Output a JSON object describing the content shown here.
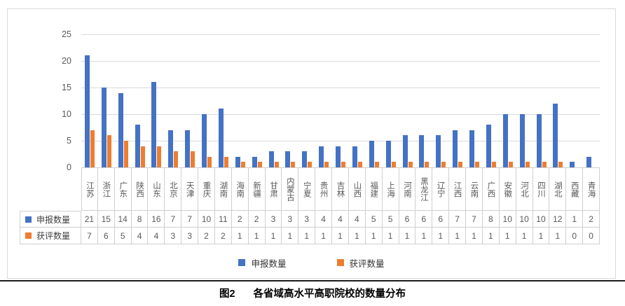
{
  "colors": {
    "applied_blue": "#4472C4",
    "awarded_orange": "#ED7D31",
    "gridline": "#DADADA",
    "table_border": "#CFCFCF",
    "axis_text": "#595959"
  },
  "chart_data": {
    "type": "bar",
    "title": "",
    "categories": [
      "江苏",
      "浙江",
      "广东",
      "陕西",
      "山东",
      "北京",
      "天津",
      "重庆",
      "湖南",
      "海南",
      "新疆",
      "甘肃",
      "内蒙古",
      "宁夏",
      "贵州",
      "吉林",
      "山西",
      "福建",
      "上海",
      "河南",
      "黑龙江",
      "辽宁",
      "江西",
      "云南",
      "广西",
      "安徽",
      "河北",
      "四川",
      "湖北",
      "西藏",
      "青海"
    ],
    "series": [
      {
        "name": "申报数量",
        "color": "#4472C4",
        "values": [
          21,
          15,
          14,
          8,
          16,
          7,
          7,
          10,
          11,
          2,
          2,
          3,
          3,
          3,
          4,
          4,
          4,
          5,
          5,
          6,
          6,
          6,
          7,
          7,
          8,
          10,
          10,
          10,
          12,
          1,
          2
        ]
      },
      {
        "name": "获评数量",
        "color": "#ED7D31",
        "values": [
          7,
          6,
          5,
          4,
          4,
          3,
          3,
          2,
          2,
          1,
          1,
          1,
          1,
          1,
          1,
          1,
          1,
          1,
          1,
          1,
          1,
          1,
          1,
          1,
          1,
          1,
          1,
          1,
          1,
          0,
          0
        ]
      }
    ],
    "xlabel": "",
    "ylabel": "",
    "ylim": [
      0,
      25
    ],
    "yticks": [
      0,
      5,
      10,
      15,
      20,
      25
    ],
    "grid": true,
    "legend_position": "bottom",
    "data_table_shown": true
  },
  "legend": {
    "applied_label": "申报数量",
    "awarded_label": "获评数量"
  },
  "caption": {
    "number": "图2",
    "text": "各省域高水平高职院校的数量分布"
  }
}
